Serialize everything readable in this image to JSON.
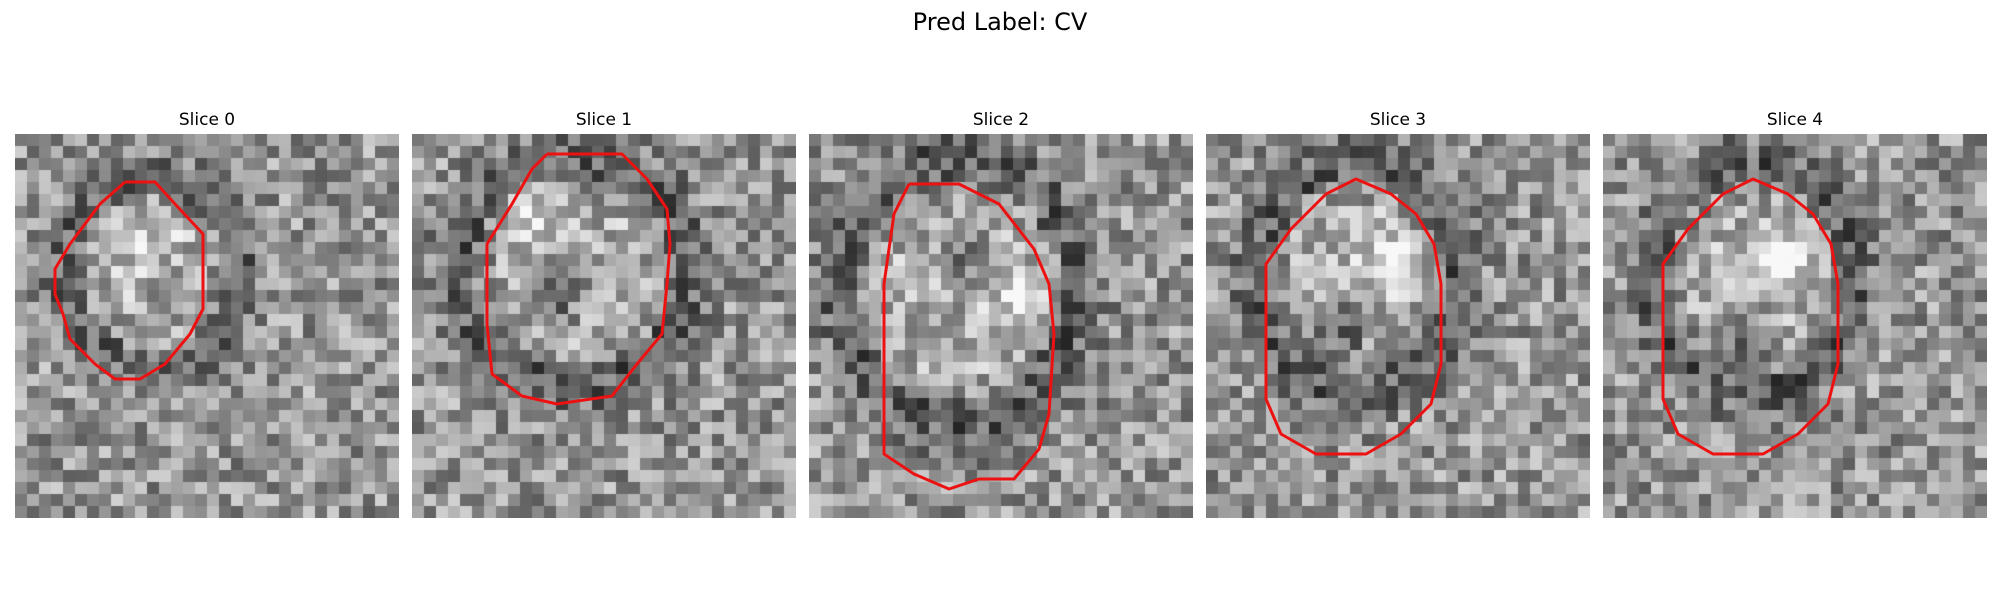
{
  "figure": {
    "title": "Pred Label: CV"
  },
  "panels": [
    {
      "title": "Slice 0"
    },
    {
      "title": "Slice 1"
    },
    {
      "title": "Slice 2"
    },
    {
      "title": "Slice 3"
    },
    {
      "title": "Slice 4"
    }
  ],
  "contour_color": "#ee1111"
}
